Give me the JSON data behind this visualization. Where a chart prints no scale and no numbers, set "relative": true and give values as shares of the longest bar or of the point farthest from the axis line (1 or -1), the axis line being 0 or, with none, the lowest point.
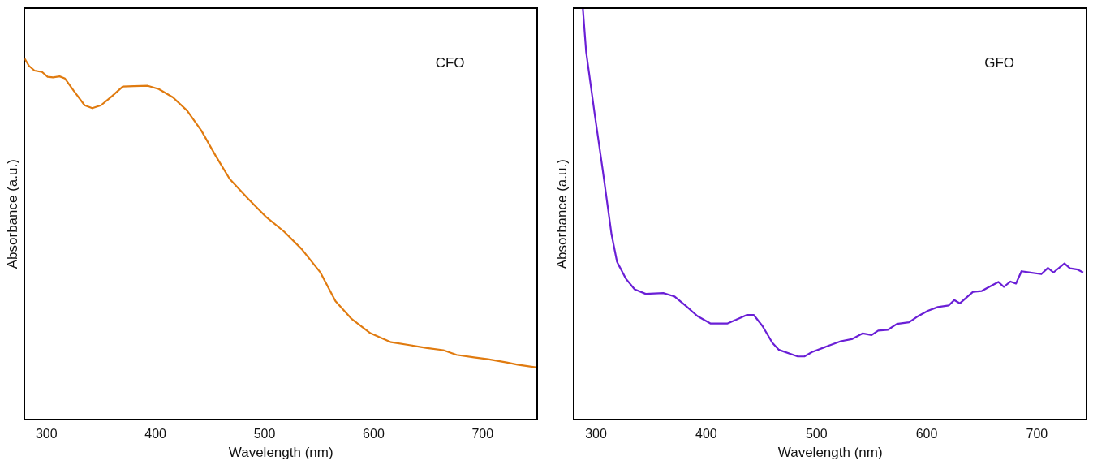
{
  "chart_data": [
    {
      "type": "line",
      "xlabel": "Wavelength (nm)",
      "ylabel": "Absorbance (a.u.)",
      "relative": true,
      "tick_labels": "x",
      "legend": false,
      "grid": false,
      "marker": "none",
      "line_style": "solid",
      "annotations": [
        "CFO"
      ],
      "xlim": [
        280,
        750
      ],
      "xticks": [
        300,
        400,
        500,
        600,
        700
      ],
      "x": [
        280,
        284,
        289,
        296,
        301,
        306,
        312,
        317,
        325,
        335,
        342,
        350,
        360,
        370,
        380,
        393,
        403,
        416,
        429,
        442,
        455,
        468,
        485,
        501,
        518,
        534,
        551,
        565,
        580,
        597,
        616,
        633,
        649,
        664,
        676,
        692,
        705,
        722,
        732,
        750
      ],
      "series": [
        {
          "color": "#e07b10",
          "values": [
            1.0,
            0.98,
            0.967,
            0.963,
            0.95,
            0.948,
            0.951,
            0.945,
            0.911,
            0.871,
            0.863,
            0.871,
            0.896,
            0.923,
            0.924,
            0.925,
            0.916,
            0.893,
            0.856,
            0.801,
            0.732,
            0.667,
            0.612,
            0.563,
            0.521,
            0.473,
            0.409,
            0.329,
            0.279,
            0.24,
            0.215,
            0.207,
            0.199,
            0.193,
            0.18,
            0.173,
            0.168,
            0.159,
            0.153,
            0.145
          ]
        }
      ]
    },
    {
      "type": "line",
      "xlabel": "Wavelength (nm)",
      "ylabel": "Absorbance (a.u.)",
      "relative": true,
      "tick_labels": "x",
      "legend": false,
      "grid": false,
      "marker": "none",
      "line_style": "solid",
      "annotations": [
        "GFO"
      ],
      "xlim": [
        280,
        745
      ],
      "xticks": [
        300,
        400,
        500,
        600,
        700
      ],
      "x": [
        288,
        291,
        299,
        306,
        314,
        319,
        327,
        335,
        345,
        361,
        371,
        381,
        392,
        404,
        419,
        427,
        437,
        443,
        451,
        460,
        466,
        483,
        489,
        496,
        509,
        522,
        532,
        542,
        550,
        556,
        565,
        573,
        584,
        591,
        601,
        610,
        620,
        625,
        630,
        642,
        650,
        656,
        665,
        670,
        676,
        681,
        686,
        704,
        710,
        715,
        725,
        730,
        737,
        742
      ],
      "series": [
        {
          "color": "#6a1fd6",
          "values": [
            1.0,
            0.894,
            0.738,
            0.608,
            0.451,
            0.384,
            0.343,
            0.317,
            0.306,
            0.308,
            0.3,
            0.278,
            0.252,
            0.234,
            0.234,
            0.243,
            0.255,
            0.255,
            0.228,
            0.187,
            0.17,
            0.154,
            0.154,
            0.165,
            0.178,
            0.191,
            0.196,
            0.21,
            0.206,
            0.217,
            0.219,
            0.233,
            0.237,
            0.25,
            0.265,
            0.274,
            0.278,
            0.291,
            0.283,
            0.311,
            0.313,
            0.322,
            0.335,
            0.323,
            0.336,
            0.331,
            0.361,
            0.354,
            0.369,
            0.358,
            0.38,
            0.368,
            0.365,
            0.358
          ]
        }
      ]
    }
  ]
}
